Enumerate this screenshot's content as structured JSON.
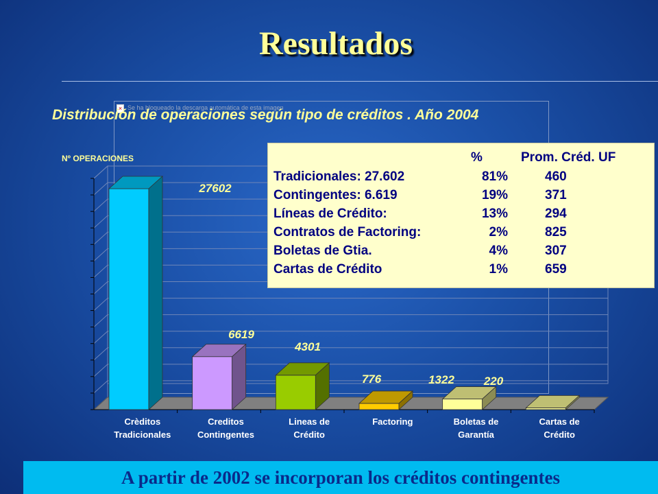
{
  "title": "Resultados",
  "broken_image_text": "Se ha bloqueado la descarga automática de esta imagen",
  "chart_data": {
    "type": "bar",
    "title": "Distribución de operaciones según tipo de créditos . Año 2004",
    "ylabel": "Nº OPERACIONES",
    "xlabel": "",
    "categories": [
      [
        "Crèditos",
        "Tradicionales"
      ],
      [
        "Creditos",
        "Contingentes"
      ],
      [
        "Lineas de",
        "Crédito"
      ],
      [
        "Factoring"
      ],
      [
        "Boletas de",
        "Garantía"
      ],
      [
        "Cartas de",
        "Crédito"
      ]
    ],
    "values": [
      27602,
      6619,
      4301,
      776,
      1322,
      220
    ],
    "value_labels": [
      "27602",
      "6619",
      "4301",
      "776",
      "1322",
      "220"
    ],
    "colors": [
      "#00ccff",
      "#cc99ff",
      "#99cc00",
      "#ffcc00",
      "#ffff99",
      "#ffff99"
    ],
    "ylim": [
      0,
      28000
    ],
    "grid": true,
    "legend": "none"
  },
  "table": {
    "header": {
      "pct": "%",
      "prom": "Prom. Créd. UF"
    },
    "rows": [
      {
        "label": "Tradicionales: 27.602",
        "pct": "81%",
        "prom": "460"
      },
      {
        "label": "Contingentes:   6.619",
        "pct": "19%",
        "prom": "371"
      },
      {
        "label": "Líneas de Crédito:",
        "pct": "13%",
        "prom": "294"
      },
      {
        "label": "Contratos de Factoring:",
        "pct": "2%",
        "prom": "825"
      },
      {
        "label": "Boletas de Gtia.",
        "pct": "4%",
        "prom": "307"
      },
      {
        "label": "Cartas de Crédito",
        "pct": "1%",
        "prom": "659"
      }
    ]
  },
  "banner": "A partir de 2002 se incorporan los créditos contingentes"
}
